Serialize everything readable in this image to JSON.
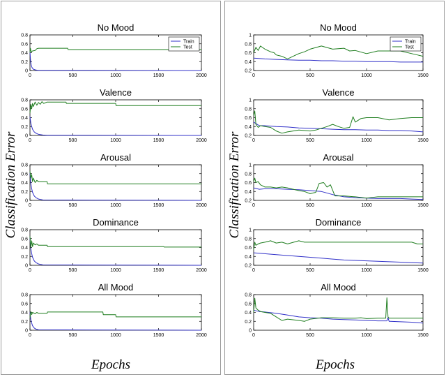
{
  "ylabel": "Classification Error",
  "xlabel": "Epochs",
  "colors": {
    "train": "#3030c8",
    "test": "#1e7d1e"
  },
  "chart_data": [
    {
      "type": "line",
      "column": "left",
      "title": "No Mood",
      "xlim": [
        0,
        2000
      ],
      "ylim": [
        0,
        0.8
      ],
      "xticks": [
        0,
        500,
        1000,
        1500,
        2000
      ],
      "yticks": [
        0,
        0.2,
        0.4,
        0.6,
        0.8
      ],
      "legend": "top-right",
      "grid": false,
      "series": [
        {
          "name": "Train",
          "x": [
            0,
            3,
            6,
            10,
            15,
            20,
            30,
            40,
            60,
            80,
            100,
            2000
          ],
          "y": [
            0.42,
            0.33,
            0.25,
            0.18,
            0.12,
            0.08,
            0.05,
            0.03,
            0.015,
            0.008,
            0.004,
            0
          ]
        },
        {
          "name": "Test",
          "x": [
            0,
            5,
            15,
            30,
            60,
            80,
            100,
            440,
            445,
            2000
          ],
          "y": [
            0.4,
            0.5,
            0.42,
            0.44,
            0.45,
            0.49,
            0.5,
            0.5,
            0.47,
            0.47
          ]
        }
      ]
    },
    {
      "type": "line",
      "column": "left",
      "title": "Valence",
      "xlim": [
        0,
        2000
      ],
      "ylim": [
        0,
        0.8
      ],
      "xticks": [
        0,
        500,
        1000,
        1500,
        2000
      ],
      "yticks": [
        0,
        0.2,
        0.4,
        0.6,
        0.8
      ],
      "series": [
        {
          "name": "Train",
          "x": [
            0,
            5,
            10,
            20,
            30,
            50,
            70,
            100,
            150,
            200,
            2000
          ],
          "y": [
            0.42,
            0.35,
            0.28,
            0.2,
            0.14,
            0.08,
            0.05,
            0.025,
            0.01,
            0.005,
            0
          ]
        },
        {
          "name": "Test",
          "x": [
            0,
            10,
            20,
            30,
            40,
            60,
            80,
            100,
            120,
            140,
            160,
            200,
            420,
            425,
            1000,
            1005,
            2000
          ],
          "y": [
            0.5,
            0.7,
            0.6,
            0.72,
            0.65,
            0.75,
            0.68,
            0.74,
            0.7,
            0.76,
            0.72,
            0.75,
            0.75,
            0.72,
            0.72,
            0.67,
            0.67
          ]
        }
      ]
    },
    {
      "type": "line",
      "column": "left",
      "title": "Arousal",
      "xlim": [
        0,
        2000
      ],
      "ylim": [
        0,
        0.8
      ],
      "xticks": [
        0,
        500,
        1000,
        1500,
        2000
      ],
      "yticks": [
        0,
        0.2,
        0.4,
        0.6,
        0.8
      ],
      "series": [
        {
          "name": "Train",
          "x": [
            0,
            5,
            10,
            20,
            30,
            50,
            70,
            100,
            150,
            2000
          ],
          "y": [
            0.62,
            0.5,
            0.38,
            0.26,
            0.18,
            0.1,
            0.06,
            0.03,
            0.01,
            0
          ]
        },
        {
          "name": "Test",
          "x": [
            0,
            10,
            20,
            30,
            40,
            60,
            80,
            100,
            200,
            205,
            2000
          ],
          "y": [
            0.65,
            0.5,
            0.58,
            0.42,
            0.5,
            0.4,
            0.45,
            0.42,
            0.42,
            0.37,
            0.37
          ]
        }
      ]
    },
    {
      "type": "line",
      "column": "left",
      "title": "Dominance",
      "xlim": [
        0,
        2000
      ],
      "ylim": [
        0,
        0.8
      ],
      "xticks": [
        0,
        500,
        1000,
        1500,
        2000
      ],
      "yticks": [
        0,
        0.2,
        0.4,
        0.6,
        0.8
      ],
      "series": [
        {
          "name": "Train",
          "x": [
            0,
            5,
            10,
            20,
            30,
            50,
            70,
            100,
            150,
            2000
          ],
          "y": [
            0.62,
            0.5,
            0.38,
            0.26,
            0.18,
            0.1,
            0.06,
            0.03,
            0.01,
            0
          ]
        },
        {
          "name": "Test",
          "x": [
            0,
            10,
            20,
            30,
            40,
            60,
            80,
            100,
            200,
            205,
            1560,
            1565,
            2000
          ],
          "y": [
            0.65,
            0.4,
            0.55,
            0.42,
            0.5,
            0.46,
            0.48,
            0.45,
            0.45,
            0.42,
            0.42,
            0.41,
            0.41
          ]
        }
      ]
    },
    {
      "type": "line",
      "column": "left",
      "title": "All Mood",
      "xlim": [
        0,
        2000
      ],
      "ylim": [
        0,
        0.8
      ],
      "xticks": [
        0,
        500,
        1000,
        1500,
        2000
      ],
      "yticks": [
        0,
        0.2,
        0.4,
        0.6,
        0.8
      ],
      "series": [
        {
          "name": "Train",
          "x": [
            0,
            5,
            10,
            20,
            30,
            50,
            70,
            100,
            2000
          ],
          "y": [
            0.4,
            0.32,
            0.24,
            0.16,
            0.1,
            0.05,
            0.025,
            0.01,
            0
          ]
        },
        {
          "name": "Test",
          "x": [
            0,
            10,
            20,
            30,
            60,
            80,
            100,
            200,
            205,
            850,
            855,
            1000,
            1005,
            2000
          ],
          "y": [
            0.28,
            0.42,
            0.35,
            0.4,
            0.37,
            0.4,
            0.38,
            0.38,
            0.41,
            0.41,
            0.35,
            0.35,
            0.3,
            0.3
          ]
        }
      ]
    },
    {
      "type": "line",
      "column": "right",
      "title": "No Mood",
      "xlim": [
        0,
        1500
      ],
      "ylim": [
        0.2,
        1
      ],
      "xticks": [
        0,
        500,
        1000,
        1500
      ],
      "yticks": [
        0.2,
        0.4,
        0.6,
        0.8,
        1
      ],
      "legend": "top-right",
      "grid": false,
      "series": [
        {
          "name": "Train",
          "x": [
            0,
            100,
            200,
            300,
            400,
            500,
            600,
            700,
            800,
            900,
            1000,
            1100,
            1200,
            1300,
            1400,
            1500
          ],
          "y": [
            0.48,
            0.46,
            0.45,
            0.44,
            0.43,
            0.43,
            0.42,
            0.42,
            0.41,
            0.41,
            0.4,
            0.4,
            0.4,
            0.39,
            0.39,
            0.39
          ]
        },
        {
          "name": "Test",
          "x": [
            0,
            20,
            40,
            60,
            100,
            150,
            180,
            200,
            250,
            300,
            350,
            400,
            450,
            500,
            600,
            700,
            800,
            850,
            900,
            1000,
            1100,
            1200,
            1300,
            1400,
            1450,
            1500
          ],
          "y": [
            0.6,
            0.72,
            0.65,
            0.75,
            0.68,
            0.62,
            0.6,
            0.55,
            0.52,
            0.46,
            0.52,
            0.58,
            0.62,
            0.68,
            0.75,
            0.68,
            0.7,
            0.64,
            0.65,
            0.58,
            0.64,
            0.64,
            0.64,
            0.58,
            0.55,
            0.52
          ]
        }
      ]
    },
    {
      "type": "line",
      "column": "right",
      "title": "Valence",
      "xlim": [
        0,
        1500
      ],
      "ylim": [
        0.2,
        1
      ],
      "xticks": [
        0,
        500,
        1000,
        1500
      ],
      "yticks": [
        0.2,
        0.4,
        0.6,
        0.8,
        1
      ],
      "series": [
        {
          "name": "Train",
          "x": [
            0,
            50,
            100,
            200,
            300,
            400,
            500,
            600,
            700,
            800,
            900,
            1000,
            1100,
            1200,
            1300,
            1400,
            1500
          ],
          "y": [
            0.5,
            0.42,
            0.42,
            0.4,
            0.39,
            0.37,
            0.36,
            0.35,
            0.34,
            0.33,
            0.33,
            0.32,
            0.32,
            0.31,
            0.31,
            0.3,
            0.28
          ]
        },
        {
          "name": "Test",
          "x": [
            0,
            10,
            20,
            40,
            60,
            100,
            150,
            200,
            250,
            300,
            350,
            400,
            500,
            550,
            600,
            650,
            700,
            750,
            800,
            850,
            880,
            900,
            950,
            1000,
            1100,
            1200,
            1300,
            1400,
            1500
          ],
          "y": [
            0.65,
            0.75,
            0.45,
            0.38,
            0.42,
            0.4,
            0.38,
            0.3,
            0.25,
            0.28,
            0.3,
            0.32,
            0.3,
            0.32,
            0.36,
            0.4,
            0.45,
            0.4,
            0.36,
            0.38,
            0.62,
            0.5,
            0.58,
            0.6,
            0.6,
            0.55,
            0.58,
            0.6,
            0.6
          ]
        }
      ]
    },
    {
      "type": "line",
      "column": "right",
      "title": "Arousal",
      "xlim": [
        0,
        1500
      ],
      "ylim": [
        0.2,
        1
      ],
      "xticks": [
        0,
        500,
        1000,
        1500
      ],
      "yticks": [
        0.2,
        0.4,
        0.6,
        0.8,
        1
      ],
      "series": [
        {
          "name": "Train",
          "x": [
            0,
            50,
            100,
            200,
            300,
            400,
            500,
            600,
            700,
            800,
            900,
            1000,
            1100,
            1200,
            1300,
            1400,
            1500
          ],
          "y": [
            0.48,
            0.45,
            0.46,
            0.46,
            0.45,
            0.44,
            0.42,
            0.4,
            0.33,
            0.28,
            0.26,
            0.25,
            0.24,
            0.24,
            0.24,
            0.23,
            0.22
          ]
        },
        {
          "name": "Test",
          "x": [
            0,
            10,
            20,
            40,
            60,
            100,
            150,
            200,
            250,
            300,
            350,
            400,
            450,
            500,
            550,
            580,
            620,
            650,
            680,
            720,
            800,
            900,
            1000,
            1100,
            1200,
            1300,
            1400,
            1500
          ],
          "y": [
            0.62,
            0.7,
            0.6,
            0.62,
            0.55,
            0.5,
            0.5,
            0.48,
            0.5,
            0.48,
            0.45,
            0.42,
            0.4,
            0.35,
            0.38,
            0.58,
            0.6,
            0.5,
            0.55,
            0.3,
            0.3,
            0.28,
            0.25,
            0.28,
            0.28,
            0.28,
            0.28,
            0.28
          ]
        }
      ]
    },
    {
      "type": "line",
      "column": "right",
      "title": "Dominance",
      "xlim": [
        0,
        1500
      ],
      "ylim": [
        0.2,
        1
      ],
      "xticks": [
        0,
        500,
        1000,
        1500
      ],
      "yticks": [
        0.2,
        0.4,
        0.6,
        0.8,
        1
      ],
      "series": [
        {
          "name": "Train",
          "x": [
            0,
            100,
            200,
            300,
            400,
            500,
            600,
            700,
            800,
            900,
            1000,
            1100,
            1200,
            1300,
            1400,
            1500
          ],
          "y": [
            0.48,
            0.46,
            0.44,
            0.42,
            0.4,
            0.38,
            0.36,
            0.34,
            0.32,
            0.31,
            0.3,
            0.29,
            0.28,
            0.27,
            0.26,
            0.25
          ]
        },
        {
          "name": "Test",
          "x": [
            0,
            10,
            20,
            40,
            60,
            100,
            150,
            200,
            250,
            300,
            400,
            450,
            500,
            600,
            700,
            800,
            900,
            1000,
            1100,
            1200,
            1300,
            1400,
            1450,
            1500
          ],
          "y": [
            0.55,
            0.72,
            0.65,
            0.68,
            0.7,
            0.72,
            0.75,
            0.7,
            0.72,
            0.68,
            0.75,
            0.72,
            0.72,
            0.72,
            0.72,
            0.72,
            0.72,
            0.72,
            0.72,
            0.72,
            0.72,
            0.72,
            0.68,
            0.68
          ]
        }
      ]
    },
    {
      "type": "line",
      "column": "right",
      "title": "All Mood",
      "xlim": [
        0,
        1500
      ],
      "ylim": [
        0,
        0.8
      ],
      "xticks": [
        0,
        500,
        1000,
        1500
      ],
      "yticks": [
        0,
        0.2,
        0.4,
        0.6,
        0.8
      ],
      "series": [
        {
          "name": "Train",
          "x": [
            0,
            50,
            100,
            200,
            300,
            400,
            500,
            600,
            700,
            800,
            900,
            1000,
            1100,
            1150,
            1180,
            1190,
            1200,
            1210,
            1300,
            1400,
            1500
          ],
          "y": [
            0.45,
            0.42,
            0.41,
            0.38,
            0.34,
            0.3,
            0.28,
            0.27,
            0.25,
            0.24,
            0.23,
            0.22,
            0.21,
            0.21,
            0.21,
            0.28,
            0.2,
            0.2,
            0.19,
            0.18,
            0.16
          ]
        },
        {
          "name": "Test",
          "x": [
            0,
            10,
            20,
            40,
            60,
            100,
            150,
            200,
            250,
            300,
            400,
            450,
            500,
            600,
            700,
            800,
            900,
            950,
            1000,
            1100,
            1170,
            1180,
            1190,
            1200,
            1210,
            1300,
            1400,
            1500
          ],
          "y": [
            0.4,
            0.72,
            0.5,
            0.45,
            0.42,
            0.4,
            0.38,
            0.3,
            0.22,
            0.25,
            0.22,
            0.2,
            0.25,
            0.28,
            0.28,
            0.27,
            0.27,
            0.28,
            0.26,
            0.27,
            0.27,
            0.73,
            0.3,
            0.27,
            0.27,
            0.27,
            0.27,
            0.27
          ]
        }
      ]
    }
  ]
}
